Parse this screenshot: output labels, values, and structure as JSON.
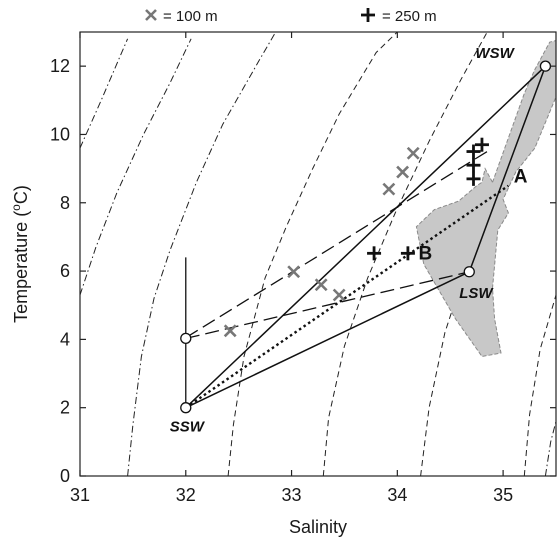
{
  "chart_data": {
    "type": "scatter",
    "xlabel": "Salinity",
    "ylabel_base": "Temperature (",
    "ylabel_sup": "o",
    "ylabel_end": "C)",
    "xlim": [
      31,
      35.5
    ],
    "ylim": [
      0,
      13
    ],
    "xticks": [
      31,
      32,
      33,
      34,
      35
    ],
    "yticks": [
      0,
      2,
      4,
      6,
      8,
      10,
      12
    ],
    "grid": false,
    "legend": {
      "placement": "top",
      "entries": [
        {
          "symbol": "x",
          "label": "= 100 m",
          "color": "#777777"
        },
        {
          "symbol": "+",
          "label": "= 250 m",
          "color": "#111111"
        }
      ]
    },
    "water_masses": [
      {
        "label": "SSW",
        "s": 32.0,
        "t": 2.0
      },
      {
        "label": "LSW",
        "s": 34.68,
        "t": 5.98
      },
      {
        "label": "WSW",
        "s": 35.4,
        "t": 12.0
      }
    ],
    "extra_endpoint": {
      "s": 32.0,
      "t": 4.03
    },
    "mixing_triangle": [
      [
        32.0,
        2.0
      ],
      [
        35.4,
        12.0
      ],
      [
        34.68,
        5.98
      ]
    ],
    "vertical_segment": {
      "s": 32.0,
      "t_from": 2.0,
      "t_to": 6.4
    },
    "dotted_line": [
      [
        32.0,
        2.0
      ],
      [
        35.05,
        8.5
      ]
    ],
    "long_dash_lines": [
      [
        [
          32.0,
          4.03
        ],
        [
          34.68,
          5.98
        ]
      ],
      [
        [
          32.0,
          4.05
        ],
        [
          34.85,
          9.5
        ]
      ]
    ],
    "point_labels": [
      {
        "label": "A",
        "s": 35.1,
        "t": 8.8
      },
      {
        "label": "B",
        "s": 34.2,
        "t": 6.55
      }
    ],
    "x_markers": [
      {
        "s": 32.42,
        "t": 4.25
      },
      {
        "s": 33.02,
        "t": 5.98
      },
      {
        "s": 33.28,
        "t": 5.6
      },
      {
        "s": 33.45,
        "t": 5.3
      },
      {
        "s": 33.92,
        "t": 8.4
      },
      {
        "s": 34.05,
        "t": 8.9
      },
      {
        "s": 34.15,
        "t": 9.45
      }
    ],
    "plus_markers": [
      {
        "s": 33.78,
        "t": 6.52
      },
      {
        "s": 34.1,
        "t": 6.52
      },
      {
        "s": 34.8,
        "t": 9.7
      },
      {
        "s": 34.72,
        "t": 9.5
      },
      {
        "s": 34.72,
        "t": 9.1
      },
      {
        "s": 34.72,
        "t": 8.7
      }
    ],
    "shaded_regions": [
      {
        "color": "#c8c8c8",
        "edge": "#8a8a8a",
        "points": [
          [
            34.9,
            8.6
          ],
          [
            35.2,
            11.2
          ],
          [
            35.3,
            11.9
          ],
          [
            35.44,
            12.7
          ],
          [
            35.5,
            12.75
          ],
          [
            35.5,
            11.1
          ],
          [
            35.3,
            9.6
          ],
          [
            35.12,
            8.9
          ],
          [
            35.0,
            8.1
          ],
          [
            35.05,
            7.7
          ],
          [
            34.95,
            7.2
          ],
          [
            34.9,
            5.5
          ],
          [
            34.92,
            4.6
          ],
          [
            34.98,
            3.6
          ],
          [
            34.8,
            3.5
          ],
          [
            34.55,
            4.6
          ],
          [
            34.25,
            6.2
          ],
          [
            34.18,
            7.3
          ],
          [
            34.35,
            7.8
          ],
          [
            34.58,
            8.05
          ],
          [
            34.75,
            8.5
          ],
          [
            34.8,
            8.6
          ],
          [
            34.83,
            9.0
          ]
        ]
      }
    ],
    "density_contours": [
      {
        "style": "dashdot",
        "points": [
          [
            31.0,
            5.3
          ],
          [
            31.15,
            6.7
          ],
          [
            31.35,
            8.3
          ],
          [
            31.6,
            10.0
          ],
          [
            31.85,
            11.5
          ],
          [
            32.05,
            12.8
          ]
        ]
      },
      {
        "style": "dashdot",
        "points": [
          [
            31.45,
            0.0
          ],
          [
            31.5,
            1.5
          ],
          [
            31.58,
            3.5
          ],
          [
            31.7,
            5.2
          ],
          [
            31.85,
            6.6
          ],
          [
            32.1,
            8.6
          ],
          [
            32.35,
            10.3
          ],
          [
            32.7,
            12.2
          ],
          [
            32.85,
            13.0
          ]
        ]
      },
      {
        "style": "dashed",
        "points": [
          [
            32.4,
            0.0
          ],
          [
            32.45,
            1.5
          ],
          [
            32.55,
            3.5
          ],
          [
            32.75,
            5.8
          ],
          [
            32.95,
            7.3
          ],
          [
            33.2,
            9.0
          ],
          [
            33.45,
            10.6
          ],
          [
            33.8,
            12.4
          ],
          [
            34.0,
            13.0
          ]
        ]
      },
      {
        "style": "dashed",
        "points": [
          [
            33.3,
            0.0
          ],
          [
            33.35,
            1.7
          ],
          [
            33.5,
            3.8
          ],
          [
            33.72,
            5.8
          ],
          [
            33.98,
            7.7
          ],
          [
            34.3,
            9.8
          ],
          [
            34.6,
            11.6
          ],
          [
            34.85,
            13.0
          ]
        ]
      },
      {
        "style": "dashed",
        "points": [
          [
            34.22,
            0.0
          ],
          [
            34.3,
            2.0
          ],
          [
            34.45,
            4.2
          ],
          [
            34.65,
            6.1
          ],
          [
            34.9,
            8.0
          ],
          [
            35.2,
            10.1
          ],
          [
            35.5,
            12.2
          ]
        ]
      },
      {
        "style": "dashed",
        "points": [
          [
            35.2,
            0.0
          ],
          [
            35.25,
            1.8
          ],
          [
            35.35,
            3.7
          ],
          [
            35.5,
            5.3
          ]
        ]
      },
      {
        "style": "dashdot",
        "points": [
          [
            31.0,
            9.6
          ],
          [
            31.2,
            11.0
          ],
          [
            31.45,
            12.8
          ]
        ]
      },
      {
        "style": "dashdot",
        "points": [
          [
            35.4,
            0.0
          ],
          [
            35.45,
            1.0
          ],
          [
            35.5,
            1.6
          ]
        ]
      }
    ]
  }
}
